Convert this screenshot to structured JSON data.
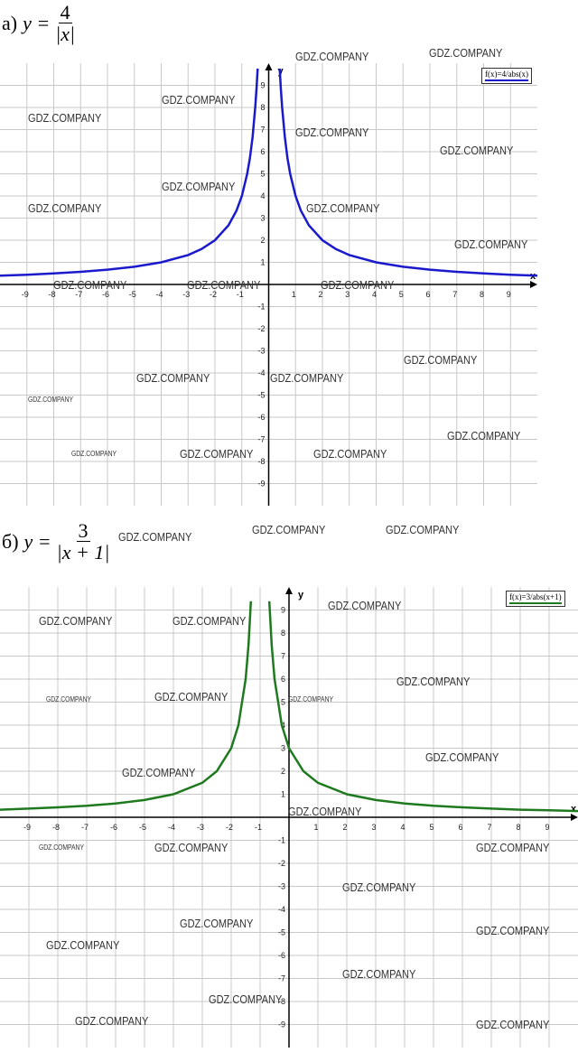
{
  "chart_data": [
    {
      "type": "line",
      "title": {
        "label": "а)",
        "lhs": "y =",
        "numerator": "4",
        "denominator": "|x|"
      },
      "x_label": "x",
      "y_label": "y",
      "xlim": [
        -10,
        10
      ],
      "ylim": [
        -10,
        10
      ],
      "xticks": [
        -9,
        -8,
        -7,
        -6,
        -5,
        -4,
        -3,
        -2,
        -1,
        1,
        2,
        3,
        4,
        5,
        6,
        7,
        8,
        9
      ],
      "yticks": [
        -9,
        -8,
        -7,
        -6,
        -5,
        -4,
        -3,
        -2,
        -1,
        1,
        2,
        3,
        4,
        5,
        6,
        7,
        8,
        9
      ],
      "grid": true,
      "legend": "upper right",
      "x": [
        -10,
        -9,
        -8,
        -7,
        -6,
        -5,
        -4,
        -3,
        -2.5,
        -2,
        -1.5,
        -1.2,
        -1,
        -0.8,
        -0.7,
        -0.6,
        -0.5,
        -0.45,
        -0.41,
        0,
        0.41,
        0.45,
        0.5,
        0.6,
        0.7,
        0.8,
        1,
        1.2,
        1.5,
        2,
        2.5,
        3,
        4,
        5,
        6,
        7,
        8,
        9,
        10
      ],
      "series": [
        {
          "name": "f(x)=4/abs(x)",
          "color": "#1a1acc",
          "values": [
            0.4,
            0.44,
            0.5,
            0.57,
            0.67,
            0.8,
            1,
            1.33,
            1.6,
            2,
            2.67,
            3.33,
            4,
            5,
            5.71,
            6.67,
            8,
            8.89,
            9.76,
            null,
            9.76,
            8.89,
            8,
            6.67,
            5.71,
            5,
            4,
            3.33,
            2.67,
            2,
            1.6,
            1.33,
            1,
            0.8,
            0.67,
            0.57,
            0.5,
            0.44,
            0.4
          ]
        }
      ]
    },
    {
      "type": "line",
      "title": {
        "label": "б)",
        "lhs": "y =",
        "numerator": "3",
        "denominator": "|x + 1|"
      },
      "x_label": "x",
      "y_label": "y",
      "xlim": [
        -10,
        10
      ],
      "ylim": [
        -10,
        10
      ],
      "xticks": [
        -9,
        -8,
        -7,
        -6,
        -5,
        -4,
        -3,
        -2,
        -1,
        1,
        2,
        3,
        4,
        5,
        6,
        7,
        8,
        9
      ],
      "yticks": [
        -9,
        -8,
        -7,
        -6,
        -5,
        -4,
        -3,
        -2,
        -1,
        1,
        2,
        3,
        4,
        5,
        6,
        7,
        8,
        9
      ],
      "grid": true,
      "legend": "upper right",
      "x": [
        -10,
        -9,
        -8,
        -7,
        -6,
        -5,
        -4,
        -3,
        -2.5,
        -2,
        -1.75,
        -1.5,
        -1.4,
        -1.32,
        -1,
        -0.68,
        -0.6,
        -0.5,
        -0.25,
        0,
        0.5,
        1,
        2,
        3,
        4,
        5,
        6,
        7,
        8,
        9,
        10
      ],
      "series": [
        {
          "name": "f(x)=3/abs(x+1)",
          "color": "#1f7a1f",
          "values": [
            0.33,
            0.375,
            0.43,
            0.5,
            0.6,
            0.75,
            1,
            1.5,
            2,
            3,
            4,
            6,
            7.5,
            9.38,
            null,
            9.38,
            7.5,
            6,
            4,
            3,
            2,
            1.5,
            1,
            0.75,
            0.6,
            0.5,
            0.43,
            0.375,
            0.33,
            0.3,
            0.27
          ]
        }
      ]
    }
  ],
  "watermarks": [
    "GDZ.COMPANY",
    "GDZ.COMPANY",
    "GDZ.COMPANY",
    "GDZ.COMPANY",
    "GDZ.COMPANY",
    "GDZ.COMPANY",
    "GDZ.COMPANY",
    "GDZ.COMPANY",
    "GDZ.COMPANY",
    "GDZ.COMPANY",
    "GDZ.COMPANY",
    "GDZ.COMPANY",
    "GDZ.COMPANY",
    "GDZ.COMPANY",
    "GDZ.COMPANY",
    "GDZ.COMPANY",
    "GDZ.COMPANY",
    "GDZ.COMPANY",
    "GDZ.COMPANY",
    "GDZ.COMPANY",
    "GDZ.COMPANY",
    "GDZ.COMPANY",
    "GDZ.COMPANY",
    "GDZ.COMPANY",
    "GDZ.COMPANY",
    "GDZ.COMPANY",
    "GDZ.COMPANY",
    "GDZ.COMPANY",
    "GDZ.COMPANY",
    "GDZ.COMPANY",
    "GDZ.COMPANY",
    "GDZ.COMPANY",
    "GDZ.COMPANY",
    "GDZ.COMPANY",
    "GDZ.COMPANY",
    "GDZ.COMPANY",
    "GDZ.COMPANY",
    "GDZ.COMPANY",
    "GDZ.COMPANY",
    "GDZ.COMPANY",
    "GDZ.COMPANY",
    "GDZ.COMPANY",
    "GDZ.COMPANY",
    "GDZ.COMPANY",
    "GDZ.COMPANY"
  ]
}
